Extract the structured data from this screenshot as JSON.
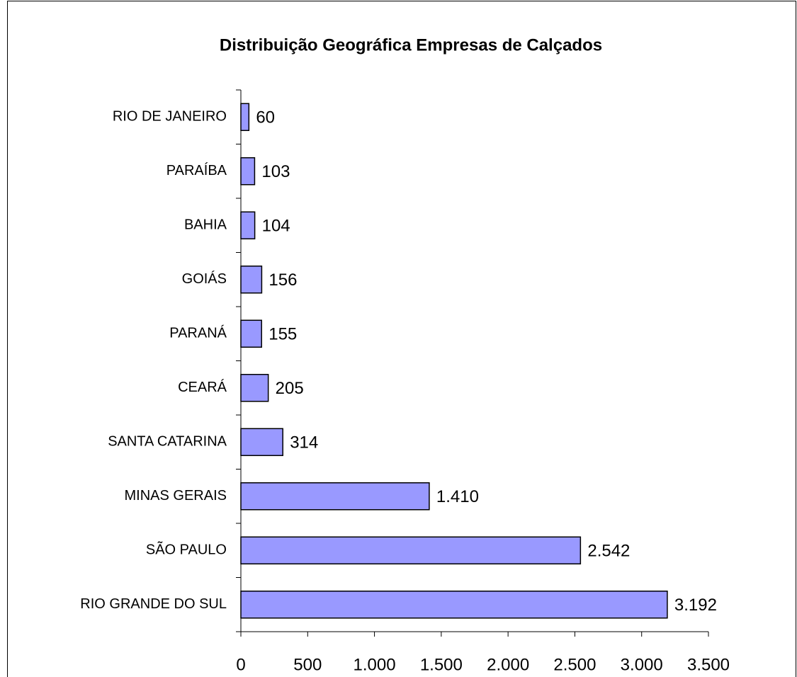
{
  "chart_data": {
    "type": "barh",
    "title": "Distribuição Geográfica Empresas de Calçados",
    "categories": [
      "RIO DE JANEIRO",
      "PARAÍBA",
      "BAHIA",
      "GOIÁS",
      "PARANÁ",
      "CEARÁ",
      "SANTA CATARINA",
      "MINAS GERAIS",
      "SÃO PAULO",
      "RIO GRANDE DO SUL"
    ],
    "values": [
      60,
      103,
      104,
      156,
      155,
      205,
      314,
      1410,
      2542,
      3192
    ],
    "value_labels": [
      "60",
      "103",
      "104",
      "156",
      "155",
      "205",
      "314",
      "1.410",
      "2.542",
      "3.192"
    ],
    "color": "#9999ff",
    "xlim": [
      0,
      3500
    ],
    "xticks": [
      0,
      500,
      {
        "value": 1000,
        "label": "1.000"
      },
      {
        "value": 1500,
        "label": "1.500"
      },
      {
        "value": 2000,
        "label": "2.000"
      },
      {
        "value": 2500,
        "label": "2.500"
      },
      {
        "value": 3000,
        "label": "3.000"
      },
      {
        "value": 3500,
        "label": "3.500"
      }
    ]
  }
}
